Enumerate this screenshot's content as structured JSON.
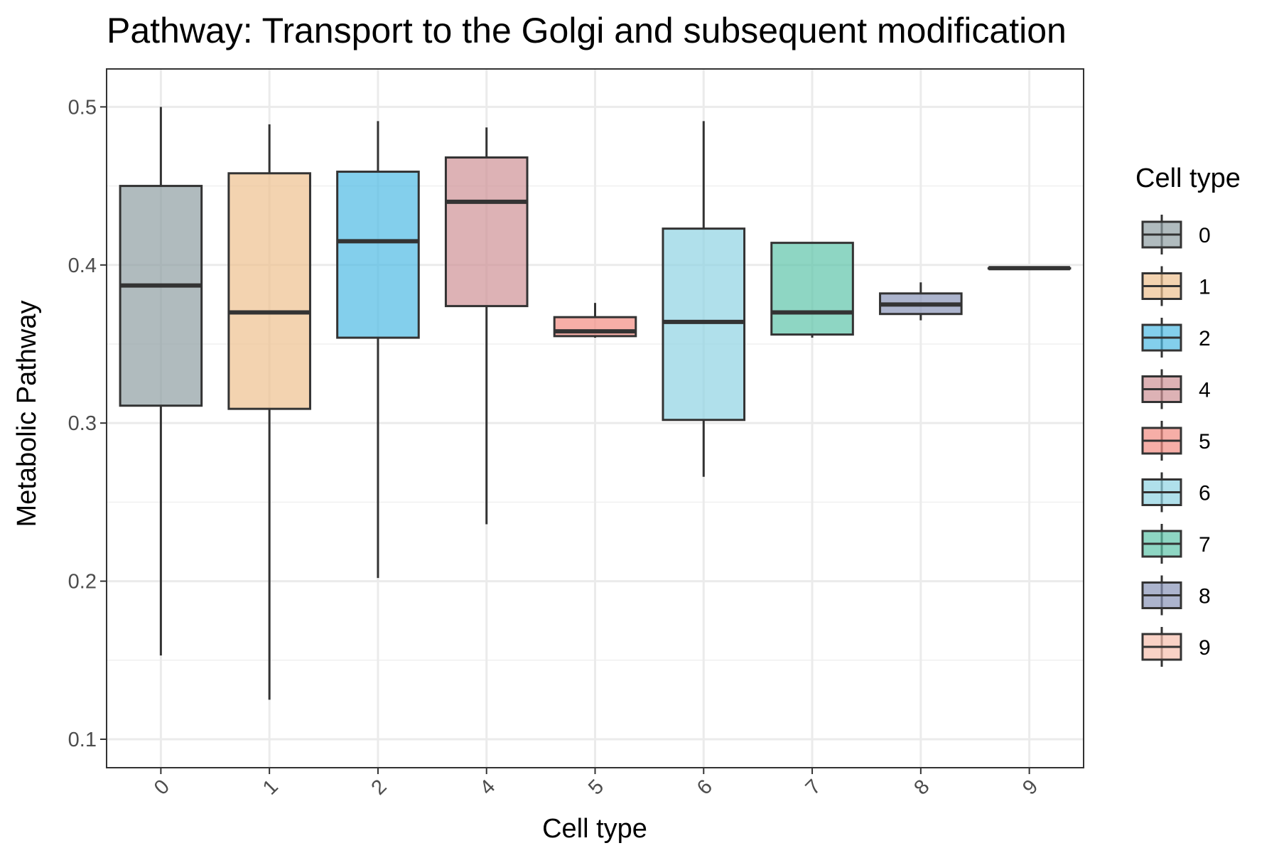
{
  "chart_data": {
    "type": "boxplot",
    "title": "Pathway: Transport to the Golgi and subsequent modification",
    "xlabel": "Cell type",
    "ylabel": "Metabolic Pathway",
    "ylim": [
      0.082,
      0.524
    ],
    "yticks": [
      0.1,
      0.2,
      0.3,
      0.4,
      0.5
    ],
    "ytick_labels": [
      "0.1",
      "0.2",
      "0.3",
      "0.4",
      "0.5"
    ],
    "grid": true,
    "legend": {
      "title": "Cell type",
      "position": "right"
    },
    "series": [
      {
        "category": "0",
        "color": "#8F9EA3",
        "whisker_low": 0.153,
        "q1": 0.311,
        "median": 0.387,
        "q3": 0.45,
        "whisker_high": 0.5
      },
      {
        "category": "1",
        "color": "#EEC08F",
        "whisker_low": 0.125,
        "q1": 0.309,
        "median": 0.37,
        "q3": 0.458,
        "whisker_high": 0.489
      },
      {
        "category": "2",
        "color": "#4FBBE4",
        "whisker_low": 0.202,
        "q1": 0.354,
        "median": 0.415,
        "q3": 0.459,
        "whisker_high": 0.491
      },
      {
        "category": "4",
        "color": "#CF9296",
        "whisker_low": 0.236,
        "q1": 0.374,
        "median": 0.44,
        "q3": 0.468,
        "whisker_high": 0.487
      },
      {
        "category": "5",
        "color": "#F28B82",
        "whisker_low": 0.354,
        "q1": 0.355,
        "median": 0.358,
        "q3": 0.367,
        "whisker_high": 0.376
      },
      {
        "category": "6",
        "color": "#8FD3E3",
        "whisker_low": 0.266,
        "q1": 0.302,
        "median": 0.364,
        "q3": 0.423,
        "whisker_high": 0.491
      },
      {
        "category": "7",
        "color": "#5EC4A9",
        "whisker_low": 0.354,
        "q1": 0.356,
        "median": 0.37,
        "q3": 0.414,
        "whisker_high": 0.414
      },
      {
        "category": "8",
        "color": "#8994B8",
        "whisker_low": 0.365,
        "q1": 0.369,
        "median": 0.375,
        "q3": 0.382,
        "whisker_high": 0.389
      },
      {
        "category": "9",
        "color": "#F6BFAE",
        "whisker_low": 0.398,
        "q1": 0.398,
        "median": 0.398,
        "q3": 0.398,
        "whisker_high": 0.398
      }
    ]
  }
}
